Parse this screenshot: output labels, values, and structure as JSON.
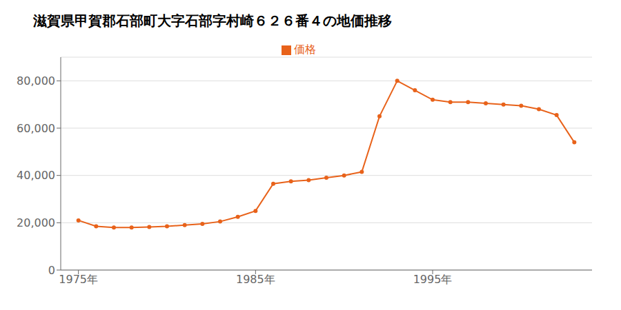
{
  "chart_data": {
    "type": "line",
    "title": "滋賀県甲賀郡石部町大字石部字村崎６２６番４の地価推移",
    "x": [
      1975,
      1976,
      1977,
      1978,
      1979,
      1980,
      1981,
      1982,
      1983,
      1984,
      1985,
      1986,
      1987,
      1988,
      1989,
      1990,
      1991,
      1992,
      1993,
      1994,
      1995,
      1996,
      1997,
      1998,
      1999,
      2000,
      2001,
      2002,
      2003
    ],
    "series": [
      {
        "name": "価格",
        "color": "#e8621a",
        "marker": "circle",
        "values": [
          21000,
          18500,
          18000,
          18000,
          18200,
          18500,
          19000,
          19500,
          20500,
          22500,
          25000,
          36500,
          37500,
          38000,
          39000,
          40000,
          41500,
          65000,
          80000,
          76000,
          72000,
          71000,
          71000,
          70500,
          70000,
          69500,
          68000,
          65500,
          54000
        ]
      }
    ],
    "xlim": [
      1974,
      2004
    ],
    "xticks": [
      {
        "value": 1975,
        "label": "1975年"
      },
      {
        "value": 1985,
        "label": "1985年"
      },
      {
        "value": 1995,
        "label": "1995年"
      }
    ],
    "ylim": [
      0,
      90000
    ],
    "yticks": [
      0,
      {
        "value": 20000,
        "label": "20,000"
      },
      {
        "value": 40000,
        "label": "40,000"
      },
      {
        "value": 60000,
        "label": "60,000"
      },
      {
        "value": 80000,
        "label": "80,000"
      }
    ],
    "grid": "y",
    "legend": "top"
  }
}
